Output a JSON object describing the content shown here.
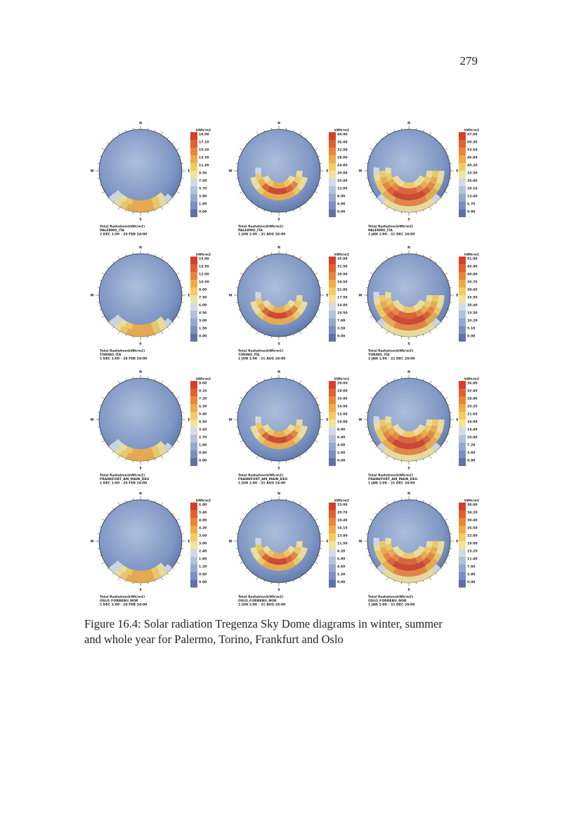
{
  "page_number": "279",
  "compass": [
    "N",
    "E",
    "S",
    "W"
  ],
  "panels": [
    {
      "unit": "kWh/m2",
      "legend": [
        "19.00",
        "17.10",
        "15.20",
        "13.30",
        "11.40",
        "9.50",
        "7.60",
        "5.70",
        "3.80",
        "1.90",
        "0.00"
      ],
      "caption": [
        "Total Radiation(kWh/m2)",
        "PALERMO_ITA",
        "1 DEC 1:00 - 28 FEB 24:00"
      ]
    },
    {
      "unit": "kWh/m2",
      "legend": [
        "40.00",
        "36.00",
        "32.00",
        "28.00",
        "24.00",
        "20.00",
        "16.00",
        "12.00",
        "8.00",
        "4.00",
        "0.00"
      ],
      "caption": [
        "Total Radiation(kWh/m2)",
        "PALERMO_ITA",
        "1 JUN 1:00 - 31 AUG 24:00"
      ]
    },
    {
      "unit": "kWh/m2",
      "legend": [
        "67.00",
        "60.30",
        "53.60",
        "46.90",
        "40.20",
        "33.50",
        "26.80",
        "20.10",
        "13.40",
        "6.70",
        "0.00"
      ],
      "caption": [
        "Total Radiation(kWh/m2)",
        "PALERMO_ITA",
        "1 JAN 1:00 - 31 DEC 24:00"
      ]
    },
    {
      "unit": "kWh/m2",
      "legend": [
        "15.00",
        "13.50",
        "12.00",
        "10.50",
        "9.00",
        "7.50",
        "6.00",
        "4.50",
        "3.00",
        "1.50",
        "0.00"
      ],
      "caption": [
        "Total Radiation(kWh/m2)",
        "TORINO_ITA",
        "1 DEC 1:00 - 28 FEB 24:00"
      ]
    },
    {
      "unit": "kWh/m2",
      "legend": [
        "35.00",
        "31.50",
        "28.00",
        "24.50",
        "21.00",
        "17.50",
        "14.00",
        "10.50",
        "7.00",
        "3.50",
        "0.00"
      ],
      "caption": [
        "Total Radiation(kWh/m2)",
        "TORINO_ITA",
        "1 JUN 1:00 - 31 AUG 24:00"
      ]
    },
    {
      "unit": "kWh/m2",
      "legend": [
        "51.00",
        "45.90",
        "40.80",
        "35.70",
        "30.60",
        "25.50",
        "20.40",
        "15.30",
        "10.20",
        "5.10",
        "0.00"
      ],
      "caption": [
        "Total Radiation(kWh/m2)",
        "TORINO_ITA",
        "1 JAN 1:00 - 31 DEC 24:00"
      ]
    },
    {
      "unit": "kWh/m2",
      "legend": [
        "9.00",
        "8.10",
        "7.20",
        "6.30",
        "5.40",
        "4.50",
        "3.60",
        "2.70",
        "1.80",
        "0.90",
        "0.00"
      ],
      "caption": [
        "Total Radiation(kWh/m2)",
        "FRANKFURT_AM_MAIN_DEU",
        "1 DEC 1:00 - 28 FEB 24:00"
      ]
    },
    {
      "unit": "kWh/m2",
      "legend": [
        "20.00",
        "18.00",
        "16.00",
        "14.00",
        "12.00",
        "10.00",
        "8.00",
        "6.00",
        "4.00",
        "2.00",
        "0.00"
      ],
      "caption": [
        "Total Radiation(kWh/m2)",
        "FRANKFURT_AM_MAIN_DEU",
        "1 JUN 1:00 - 31 AUG 24:00"
      ]
    },
    {
      "unit": "kWh/m2",
      "legend": [
        "36.00",
        "32.40",
        "28.80",
        "25.20",
        "21.60",
        "18.00",
        "14.40",
        "10.80",
        "7.20",
        "3.60",
        "0.00"
      ],
      "caption": [
        "Total Radiation(kWh/m2)",
        "FRANKFURT_AM_MAIN_DEU",
        "1 JAN 1:00 - 31 DEC 24:00"
      ]
    },
    {
      "unit": "kWh/m2",
      "legend": [
        "6.00",
        "5.40",
        "4.80",
        "4.20",
        "3.60",
        "3.00",
        "2.40",
        "1.80",
        "1.20",
        "0.60",
        "0.00"
      ],
      "caption": [
        "Total Radiation(kWh/m2)",
        "OSLO_FORNEBU_NOR",
        "1 DEC 1:00 - 28 FEB 24:00"
      ]
    },
    {
      "unit": "kWh/m2",
      "legend": [
        "23.00",
        "20.70",
        "18.40",
        "16.10",
        "13.80",
        "11.50",
        "9.20",
        "6.90",
        "4.60",
        "2.30",
        "0.00"
      ],
      "caption": [
        "Total Radiation(kWh/m2)",
        "OSLO_FORNEBU_NOR",
        "1 JUN 1:00 - 31 AUG 24:00"
      ]
    },
    {
      "unit": "kWh/m2",
      "legend": [
        "38.00",
        "34.20",
        "30.40",
        "26.60",
        "22.80",
        "19.00",
        "15.20",
        "11.40",
        "7.60",
        "3.80",
        "0.00"
      ],
      "caption": [
        "Total Radiation(kWh/m2)",
        "OSLO_FORNEBU_NOR",
        "1 JAN 1:00 - 31 DEC 24:00"
      ]
    }
  ],
  "figure_caption": [
    "Figure 16.4: Solar radiation Tregenza Sky Dome diagrams in winter, summer",
    "and whole year for Palermo, Torino, Frankfurt and Oslo"
  ]
}
